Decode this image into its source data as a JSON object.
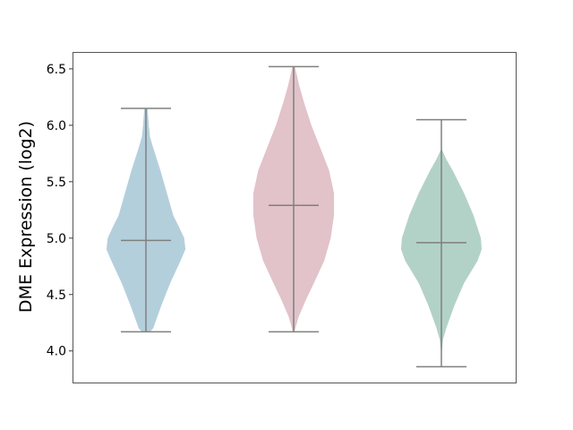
{
  "chart_data": {
    "type": "violin",
    "title": "",
    "xlabel": "",
    "ylabel": "DME Expression (log2)",
    "ylim": [
      3.72,
      6.65
    ],
    "yticks": [
      "4.0",
      "4.5",
      "5.0",
      "5.5",
      "6.0",
      "6.5"
    ],
    "grid": false,
    "series": [
      {
        "color": "#b4cfdc",
        "min": 4.17,
        "median": 4.98,
        "max": 6.15,
        "density": [
          [
            4.17,
            0.1
          ],
          [
            4.2,
            0.18
          ],
          [
            4.4,
            0.38
          ],
          [
            4.6,
            0.6
          ],
          [
            4.8,
            0.86
          ],
          [
            4.9,
            0.98
          ],
          [
            5.0,
            0.95
          ],
          [
            5.1,
            0.82
          ],
          [
            5.2,
            0.68
          ],
          [
            5.4,
            0.52
          ],
          [
            5.6,
            0.36
          ],
          [
            5.8,
            0.18
          ],
          [
            5.9,
            0.1
          ],
          [
            6.0,
            0.07
          ],
          [
            6.15,
            0.04
          ]
        ]
      },
      {
        "color": "#e1c3c9",
        "min": 4.17,
        "median": 5.29,
        "max": 6.52,
        "density": [
          [
            4.17,
            0.02
          ],
          [
            4.3,
            0.12
          ],
          [
            4.45,
            0.3
          ],
          [
            4.6,
            0.5
          ],
          [
            4.8,
            0.76
          ],
          [
            5.0,
            0.92
          ],
          [
            5.2,
            1.0
          ],
          [
            5.4,
            1.0
          ],
          [
            5.6,
            0.88
          ],
          [
            5.8,
            0.66
          ],
          [
            6.0,
            0.44
          ],
          [
            6.2,
            0.26
          ],
          [
            6.35,
            0.14
          ],
          [
            6.52,
            0.03
          ]
        ]
      },
      {
        "color": "#b3d2c7",
        "min": 3.86,
        "median": 4.96,
        "max": 6.05,
        "density": [
          [
            3.95,
            0.0
          ],
          [
            4.1,
            0.04
          ],
          [
            4.2,
            0.12
          ],
          [
            4.4,
            0.32
          ],
          [
            4.6,
            0.56
          ],
          [
            4.8,
            0.9
          ],
          [
            4.9,
            1.0
          ],
          [
            5.0,
            0.98
          ],
          [
            5.2,
            0.8
          ],
          [
            5.4,
            0.56
          ],
          [
            5.6,
            0.28
          ],
          [
            5.7,
            0.12
          ],
          [
            5.78,
            0.02
          ]
        ]
      }
    ],
    "line_color": "#808080"
  }
}
